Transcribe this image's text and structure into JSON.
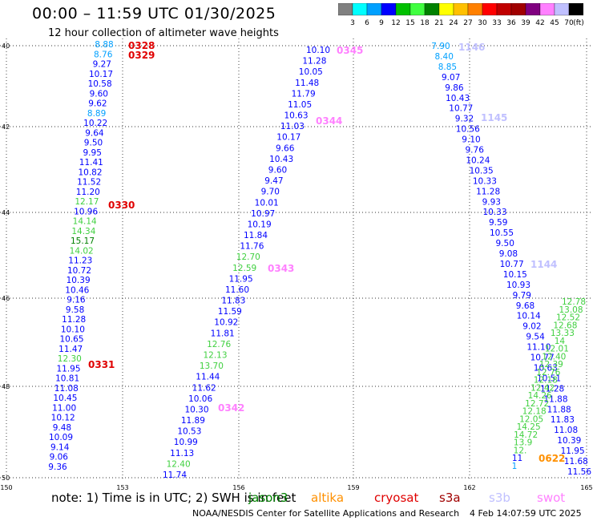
{
  "header": {
    "title": "00:00 – 11:59 UTC 01/30/2025",
    "subtitle": "12 hour collection of altimeter wave heights"
  },
  "legend": {
    "colors": [
      "#808080",
      "#00ffff",
      "#00a0ff",
      "#0000ff",
      "#00c000",
      "#40ff40",
      "#008000",
      "#ffff00",
      "#ffc000",
      "#ff8000",
      "#ff0000",
      "#c00000",
      "#a00000",
      "#800080",
      "#ff80ff",
      "#c0c0ff",
      "#000000"
    ],
    "labels": [
      "3",
      "6",
      "9",
      "12",
      "15",
      "18",
      "21",
      "24",
      "27",
      "30",
      "33",
      "36",
      "39",
      "42",
      "45",
      "70",
      "(ft)"
    ]
  },
  "map": {
    "lat_labels": [
      "40",
      "42",
      "44",
      "46",
      "48",
      "50"
    ],
    "lon_labels": [
      "150",
      "153",
      "156",
      "159",
      "162",
      "165"
    ],
    "tracks": [
      {
        "label": "0328",
        "label_color": "#e00000",
        "values": [
          "8.88",
          "8.76",
          "9.27",
          "10.17",
          "10.58",
          "9.60",
          "9.62",
          "8.89",
          "10.22",
          "9.64",
          "9.50",
          "9.95",
          "11.41",
          "10.82",
          "11.52",
          "11.20",
          "12.17",
          "10.96",
          "14.14",
          "14.34",
          "15.17",
          "14.02",
          "11.23",
          "10.72",
          "10.39",
          "10.46",
          "9.16",
          "9.58",
          "11.28",
          "10.10",
          "10.65",
          "11.47",
          "12.30",
          "11.95",
          "10.81",
          "11.08",
          "10.45",
          "11.00",
          "10.12",
          "9.48",
          "10.09",
          "9.14",
          "9.06",
          "9.36"
        ]
      },
      {
        "label": "0329",
        "label_color": "#e00000",
        "values": []
      },
      {
        "label": "0330",
        "label_color": "#e00000",
        "values": []
      },
      {
        "label": "0331",
        "label_color": "#e00000",
        "values": []
      },
      {
        "label": "0345",
        "label_color": "#ff80ff",
        "values": [
          "10.10",
          "11.28",
          "10.05",
          "11.48",
          "11.79",
          "11.05",
          "10.63",
          "11.03",
          "10.17",
          "9.66",
          "10.43",
          "9.60",
          "9.47",
          "9.70",
          "10.01",
          "10.97",
          "10.19",
          "11.84",
          "11.76",
          "12.70",
          "12.59",
          "11.95",
          "11.60",
          "11.83",
          "11.59",
          "10.92",
          "11.81",
          "12.76",
          "12.13",
          "13.70",
          "11.44",
          "11.62",
          "10.06",
          "10.30",
          "11.89",
          "10.53",
          "10.99",
          "11.13",
          "12.40",
          "11.74"
        ]
      },
      {
        "label": "0344",
        "label_color": "#ff80ff",
        "values": []
      },
      {
        "label": "0343",
        "label_color": "#ff80ff",
        "values": []
      },
      {
        "label": "0342",
        "label_color": "#ff80ff",
        "values": []
      },
      {
        "label": "1146",
        "label_color": "#c0c0ff",
        "values": [
          "7.90",
          "8.40",
          "8.85",
          "9.07",
          "9.86",
          "10.43",
          "10.77",
          "9.32",
          "10.56",
          "9.10",
          "9.76",
          "10.24",
          "10.35",
          "10.33",
          "11.28",
          "9.93",
          "10.33",
          "9.59",
          "10.55",
          "9.50",
          "9.08",
          "10.77",
          "10.15",
          "10.93",
          "9.79",
          "9.68",
          "10.14",
          "9.02",
          "9.54",
          "11.10",
          "10.77",
          "10.63",
          "10.51",
          "11.28",
          "11.88",
          "11.88",
          "11.83",
          "11.08",
          "10.39",
          "11.95",
          "11.68",
          "11.56"
        ]
      },
      {
        "label": "1145",
        "label_color": "#c0c0ff",
        "values": []
      },
      {
        "label": "1144",
        "label_color": "#c0c0ff",
        "values": []
      },
      {
        "label": "0622",
        "label_color": "#ff9000",
        "values": [
          "12.78",
          "13.08",
          "12.52",
          "12.68",
          "13.33",
          "14",
          "12.01",
          "12.40",
          "12.39",
          "12.76",
          "12.18",
          "12.42",
          "14.26",
          "12.72",
          "12.18",
          "12.05",
          "14.25",
          "14.72",
          "13.9",
          "12.",
          "11",
          "1"
        ]
      }
    ]
  },
  "footer": {
    "note": "note: 1) Time is in UTC; 2) SWH is in feet",
    "satellites": [
      {
        "name": "jason3",
        "color": "#008000"
      },
      {
        "name": "altika",
        "color": "#ff9000"
      },
      {
        "name": "cryosat",
        "color": "#e00000"
      },
      {
        "name": "s3a",
        "color": "#a00000"
      },
      {
        "name": "s3b",
        "color": "#c0c0ff"
      },
      {
        "name": "swot",
        "color": "#ff80ff"
      }
    ],
    "credit": "NOAA/NESDIS Center for Satellite Applications and Research",
    "timestamp": "4 Feb 14:07:59 UTC 2025"
  }
}
